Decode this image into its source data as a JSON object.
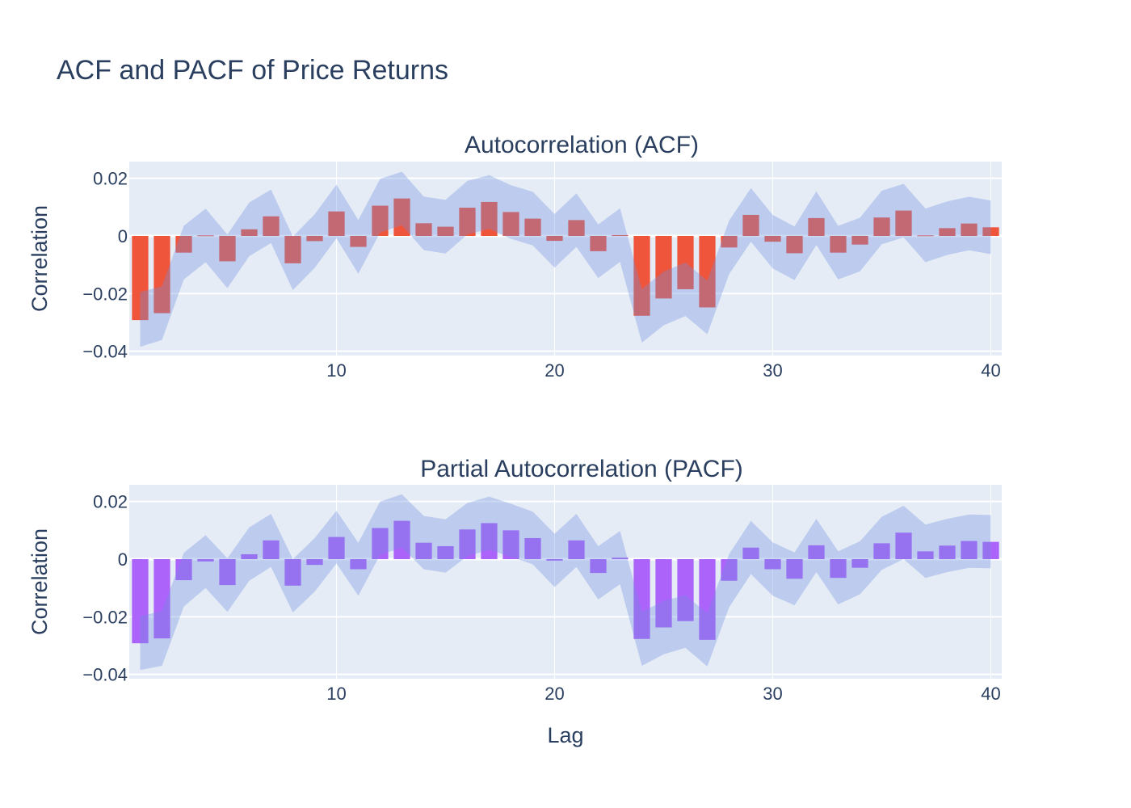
{
  "figure": {
    "title": "ACF and PACF of Price Returns",
    "xlabel": "Lag"
  },
  "chart_data": [
    {
      "type": "bar",
      "title": "Autocorrelation (ACF)",
      "xlabel": "Lag",
      "ylabel": "Correlation",
      "x": [
        1,
        2,
        3,
        4,
        5,
        6,
        7,
        8,
        9,
        10,
        11,
        12,
        13,
        14,
        15,
        16,
        17,
        18,
        19,
        20,
        21,
        22,
        23,
        24,
        25,
        26,
        27,
        28,
        29,
        30,
        31,
        32,
        33,
        34,
        35,
        36,
        37,
        38,
        39,
        40
      ],
      "values": [
        -0.0292,
        -0.0268,
        -0.0058,
        0.0002,
        -0.0088,
        0.0023,
        0.0068,
        -0.0095,
        -0.0018,
        0.0085,
        -0.0038,
        0.0105,
        0.013,
        0.0044,
        0.0032,
        0.0098,
        0.0118,
        0.0083,
        0.006,
        -0.0017,
        0.0055,
        -0.0053,
        0.0003,
        -0.0277,
        -0.0217,
        -0.0185,
        -0.0248,
        -0.004,
        0.0073,
        -0.002,
        -0.006,
        0.0062,
        -0.0058,
        -0.003,
        0.0064,
        0.0088,
        0.0002,
        0.0027,
        0.0043,
        0.003
      ],
      "ci_upper": [
        -0.0195,
        -0.0175,
        0.0035,
        0.0095,
        0.0005,
        0.0116,
        0.0161,
        -0.0002,
        0.0075,
        0.0178,
        0.0055,
        0.0198,
        0.0223,
        0.0137,
        0.0125,
        0.0191,
        0.0211,
        0.0176,
        0.0153,
        0.0076,
        0.0148,
        0.004,
        0.0096,
        -0.0184,
        -0.0124,
        -0.0092,
        -0.0155,
        0.0053,
        0.0166,
        0.0073,
        0.0033,
        0.0155,
        0.0035,
        0.0063,
        0.0157,
        0.0181,
        0.0095,
        0.012,
        0.0136,
        0.0123
      ],
      "ci_lower": [
        -0.0385,
        -0.0361,
        -0.0151,
        -0.0091,
        -0.0181,
        -0.007,
        -0.0025,
        -0.0188,
        -0.0111,
        -0.0008,
        -0.0131,
        0.0012,
        0.0037,
        -0.0049,
        -0.0061,
        0.0005,
        0.0025,
        -0.001,
        -0.0033,
        -0.011,
        -0.0038,
        -0.0146,
        -0.009,
        -0.037,
        -0.031,
        -0.0278,
        -0.0341,
        -0.0133,
        -0.002,
        -0.0113,
        -0.0153,
        -0.0031,
        -0.0151,
        -0.0123,
        -0.0029,
        -0.0005,
        -0.0091,
        -0.0066,
        -0.005,
        -0.0063
      ],
      "yticks": [
        0.02,
        0,
        -0.02,
        -0.04
      ],
      "ytick_labels": [
        "0.02",
        "0",
        "−0.02",
        "−0.04"
      ],
      "xticks": [
        10,
        20,
        30,
        40
      ],
      "xtick_labels": [
        "10",
        "20",
        "30",
        "40"
      ],
      "xlim": [
        0.5,
        40.5
      ],
      "ylim": [
        -0.0415,
        0.0258
      ],
      "bar_color": "#ef553b",
      "band_color": "#6f8fe0",
      "plot_bg": "#e5ecf6",
      "grid": true
    },
    {
      "type": "bar",
      "title": "Partial Autocorrelation (PACF)",
      "xlabel": "Lag",
      "ylabel": "Correlation",
      "x": [
        1,
        2,
        3,
        4,
        5,
        6,
        7,
        8,
        9,
        10,
        11,
        12,
        13,
        14,
        15,
        16,
        17,
        18,
        19,
        20,
        21,
        22,
        23,
        24,
        25,
        26,
        27,
        28,
        29,
        30,
        31,
        32,
        33,
        34,
        35,
        36,
        37,
        38,
        39,
        40
      ],
      "values": [
        -0.0292,
        -0.0275,
        -0.0073,
        -0.0008,
        -0.009,
        0.0017,
        0.0065,
        -0.0092,
        -0.002,
        0.0077,
        -0.0035,
        0.0108,
        0.0133,
        0.0057,
        0.0045,
        0.0103,
        0.0125,
        0.01,
        0.0073,
        -0.0005,
        0.0065,
        -0.0048,
        0.0005,
        -0.0277,
        -0.0237,
        -0.0215,
        -0.028,
        -0.0075,
        0.004,
        -0.0035,
        -0.0068,
        0.0048,
        -0.0065,
        -0.003,
        0.0055,
        0.0092,
        0.0027,
        0.0047,
        0.0063,
        0.006
      ],
      "ci_upper": [
        -0.0198,
        -0.018,
        0.0022,
        0.0083,
        0.0003,
        0.011,
        0.0157,
        0.0,
        0.0073,
        0.0168,
        0.0057,
        0.02,
        0.0225,
        0.015,
        0.0138,
        0.0195,
        0.0217,
        0.0192,
        0.0165,
        0.0088,
        0.0157,
        0.0045,
        0.0098,
        -0.0183,
        -0.0145,
        -0.0125,
        -0.0188,
        0.0017,
        0.0133,
        0.0058,
        0.0023,
        0.014,
        0.0027,
        0.0062,
        0.0147,
        0.0185,
        0.012,
        0.014,
        0.0155,
        0.0153
      ],
      "ci_lower": [
        -0.0385,
        -0.037,
        -0.0165,
        -0.01,
        -0.0183,
        -0.0075,
        -0.0027,
        -0.0185,
        -0.0113,
        -0.0015,
        -0.0127,
        0.0015,
        0.004,
        -0.0035,
        -0.0047,
        0.001,
        0.0033,
        0.0008,
        -0.0018,
        -0.0097,
        -0.0027,
        -0.014,
        -0.0087,
        -0.037,
        -0.033,
        -0.0308,
        -0.0372,
        -0.0167,
        -0.0052,
        -0.0127,
        -0.016,
        -0.0045,
        -0.0157,
        -0.0122,
        -0.0037,
        0.0,
        -0.0065,
        -0.0045,
        -0.003,
        -0.0032
      ],
      "yticks": [
        0.02,
        0,
        -0.02,
        -0.04
      ],
      "ytick_labels": [
        "0.02",
        "0",
        "−0.02",
        "−0.04"
      ],
      "xticks": [
        10,
        20,
        30,
        40
      ],
      "xtick_labels": [
        "10",
        "20",
        "30",
        "40"
      ],
      "xlim": [
        0.5,
        40.5
      ],
      "ylim": [
        -0.0415,
        0.0258
      ],
      "bar_color": "#ab63fa",
      "band_color": "#6f8fe0",
      "plot_bg": "#e5ecf6",
      "grid": true
    }
  ]
}
